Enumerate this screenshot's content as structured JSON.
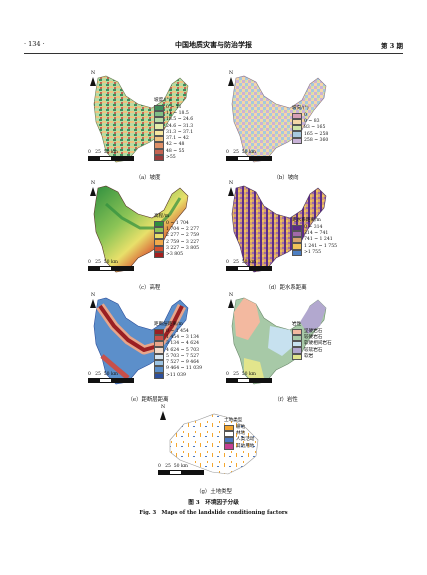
{
  "header": {
    "page_number": "· 134 ·",
    "journal_title": "中国地质灾害与防治学报",
    "issue": "第 3 期"
  },
  "north_label": "N",
  "scale_labels": [
    "0",
    "25",
    "50 km"
  ],
  "panels": [
    {
      "caption": "（a）坡度",
      "legend_title": "坡度/(°)",
      "items": [
        {
          "label": "0 ~ 11",
          "color": "#3f8e5c"
        },
        {
          "label": "11 ~ 18.5",
          "color": "#7fbf86"
        },
        {
          "label": "18.5 ~ 24.6",
          "color": "#b6dca4"
        },
        {
          "label": "24.6 ~ 31.3",
          "color": "#e2eea9"
        },
        {
          "label": "31.3 ~ 37.1",
          "color": "#f5e6a0"
        },
        {
          "label": "37.1 ~ 42",
          "color": "#f0c27f"
        },
        {
          "label": "42 ~ 48",
          "color": "#df9068"
        },
        {
          "label": "48 ~ 55",
          "color": "#c56452"
        },
        {
          "label": ">55",
          "color": "#9a3b3b"
        }
      ]
    },
    {
      "caption": "（b）坡向",
      "legend_title": "坡向/(°)",
      "items": [
        {
          "label": "0",
          "color": "#d8a0b7"
        },
        {
          "label": "0 ~ 83",
          "color": "#f4d6a8"
        },
        {
          "label": "83 ~ 165",
          "color": "#cfe3a8"
        },
        {
          "label": "165 ~ 258",
          "color": "#a7c8de"
        },
        {
          "label": "258 ~ 360",
          "color": "#c9b3d8"
        }
      ]
    },
    {
      "caption": "（c）高程",
      "legend_title": "高程/m",
      "items": [
        {
          "label": "0 ~ 1 704",
          "color": "#2f8f3f"
        },
        {
          "label": "1 704 ~ 2 277",
          "color": "#8cc456"
        },
        {
          "label": "2 277 ~ 2 759",
          "color": "#e8e06a"
        },
        {
          "label": "2 759 ~ 3 227",
          "color": "#f0a94c"
        },
        {
          "label": "3 227 ~ 3 805",
          "color": "#d7502f"
        },
        {
          "label": ">3 805",
          "color": "#a51f1f"
        }
      ]
    },
    {
      "caption": "（d）距水系距离",
      "legend_title": "距水系距离/m",
      "items": [
        {
          "label": "0 ~ 314",
          "color": "#5b2d86"
        },
        {
          "label": "314 ~ 741",
          "color": "#a06aa8"
        },
        {
          "label": "741 ~ 1 241",
          "color": "#d6a36e"
        },
        {
          "label": "1 241 ~ 1 755",
          "color": "#f0c35a"
        },
        {
          "label": ">1 755",
          "color": "#4d7fc2"
        }
      ]
    },
    {
      "caption": "（e）距断层距离",
      "legend_title": "距断层距离/m",
      "items": [
        {
          "label": "0 ~ 1 454",
          "color": "#9a1f23"
        },
        {
          "label": "1 454 ~ 3 134",
          "color": "#c8504a"
        },
        {
          "label": "3 134 ~ 4 624",
          "color": "#e8a58a"
        },
        {
          "label": "4 624 ~ 5 703",
          "color": "#f3dccb"
        },
        {
          "label": "5 703 ~ 7 527",
          "color": "#d6e6f2"
        },
        {
          "label": "7 527 ~ 9 464",
          "color": "#9cc3e2"
        },
        {
          "label": "9 464 ~ 11 039",
          "color": "#5c8fca"
        },
        {
          "label": ">11 039",
          "color": "#2d4f9c"
        }
      ]
    },
    {
      "caption": "（f）岩性",
      "legend_title": "岩性",
      "items": [
        {
          "label": "坚硬岩石",
          "color": "#f3b9a0"
        },
        {
          "label": "较硬岩石",
          "color": "#a7c9a7"
        },
        {
          "label": "软硬相间岩石",
          "color": "#c7e1ef"
        },
        {
          "label": "较软岩石",
          "color": "#b2a8cf"
        },
        {
          "label": "软岩",
          "color": "#e2e58c"
        }
      ]
    },
    {
      "caption": "（g）土地类型",
      "legend_title": "土地类型",
      "items": [
        {
          "label": "耕地",
          "color": "#f4a72f"
        },
        {
          "label": "林地",
          "color": "#ffffff"
        },
        {
          "label": "人类活动",
          "color": "#4b78c2"
        },
        {
          "label": "其他用地",
          "color": "#c43f93"
        }
      ]
    }
  ],
  "figure_caption_cn": "图 3　环境因子分级",
  "figure_caption_en": "Fig. 3　Maps of the landslide conditioning factors"
}
